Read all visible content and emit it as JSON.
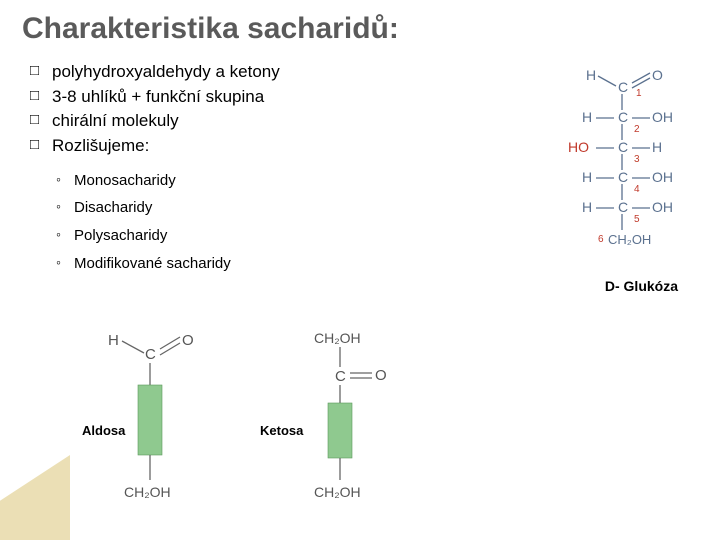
{
  "title": "Charakteristika sacharidů:",
  "main_items": [
    "polyhydroxyaldehydy a ketony",
    "3-8 uhlíků + funkční skupina",
    "chirální molekuly",
    "Rozlišujeme:"
  ],
  "sub_items": [
    "Monosacharidy",
    "Disacharidy",
    "Polysacharidy",
    "Modifikované sacharidy"
  ],
  "glucose": {
    "label": "D- Glukóza",
    "carbons": 6,
    "rows": [
      {
        "l": "H",
        "r": "O",
        "dbl": true,
        "num": "1",
        "numcolor": "#c0392b"
      },
      {
        "l": "H",
        "r": "OH",
        "num": "2",
        "numcolor": "#c0392b"
      },
      {
        "l": "HO",
        "r": "H",
        "num": "3",
        "numcolor": "#c03e2b",
        "lcolor": "#c0392b"
      },
      {
        "l": "H",
        "r": "OH",
        "num": "4",
        "numcolor": "#c0392b"
      },
      {
        "l": "H",
        "r": "OH",
        "num": "5",
        "numcolor": "#c0392b"
      },
      {
        "l": "",
        "r": "CH₂OH",
        "num": "6",
        "numcolor": "#c0392b"
      }
    ],
    "text_color": "#5b718f",
    "line_color": "#5b718f"
  },
  "bottom": {
    "aldose_label": "Aldosa",
    "ketose_label": "Ketosa",
    "bar_color": "#8fc98f",
    "line_color": "#666666",
    "text_color": "#555555"
  }
}
